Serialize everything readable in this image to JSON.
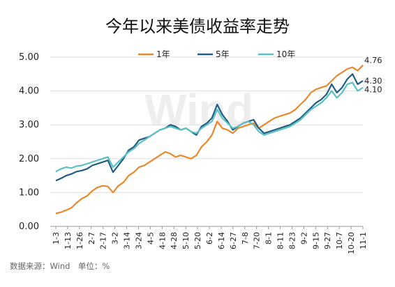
{
  "chart_data": {
    "type": "line",
    "title": "今年以来美债收益率走势",
    "ylim": [
      0,
      5
    ],
    "yticks": [
      "0.00",
      "1.00",
      "2.00",
      "3.00",
      "4.00",
      "5.00"
    ],
    "x_tick_labels": [
      "1-3",
      "1-13",
      "1-26",
      "2-7",
      "2-17",
      "3-2",
      "3-14",
      "3-24",
      "4-5",
      "4-18",
      "4-28",
      "5-10",
      "5-20",
      "6-2",
      "6-14",
      "6-27",
      "7-8",
      "7-20",
      "8-1",
      "8-11",
      "8-23",
      "9-2",
      "9-15",
      "9-27",
      "10-7",
      "10-20",
      "11-1"
    ],
    "grid": true,
    "legend_position": "top",
    "series": [
      {
        "name": "1年",
        "color": "#e8892b",
        "end_label": "4.76",
        "values": [
          0.38,
          0.42,
          0.48,
          0.55,
          0.7,
          0.82,
          0.9,
          1.05,
          1.15,
          1.2,
          1.18,
          1.0,
          1.2,
          1.3,
          1.5,
          1.6,
          1.75,
          1.8,
          1.9,
          2.0,
          2.1,
          2.2,
          2.15,
          2.05,
          2.1,
          2.05,
          2.0,
          2.1,
          2.35,
          2.5,
          2.7,
          3.1,
          2.9,
          2.85,
          2.75,
          2.9,
          2.95,
          3.0,
          3.05,
          2.9,
          3.0,
          3.1,
          3.2,
          3.25,
          3.3,
          3.35,
          3.45,
          3.6,
          3.75,
          3.95,
          4.05,
          4.1,
          4.15,
          4.3,
          4.45,
          4.55,
          4.65,
          4.7,
          4.6,
          4.76
        ]
      },
      {
        "name": "5年",
        "color": "#1f5d85",
        "end_label": "4.30",
        "values": [
          1.35,
          1.42,
          1.5,
          1.55,
          1.62,
          1.65,
          1.7,
          1.8,
          1.85,
          1.9,
          1.95,
          1.6,
          1.8,
          2.0,
          2.25,
          2.35,
          2.55,
          2.6,
          2.65,
          2.75,
          2.85,
          2.9,
          3.0,
          2.95,
          2.85,
          2.9,
          2.8,
          2.7,
          2.95,
          3.05,
          3.2,
          3.6,
          3.3,
          3.1,
          2.85,
          2.95,
          3.05,
          3.1,
          3.15,
          2.9,
          2.75,
          2.8,
          2.85,
          2.9,
          2.95,
          3.0,
          3.1,
          3.2,
          3.35,
          3.5,
          3.65,
          3.75,
          3.9,
          4.2,
          3.95,
          4.1,
          4.35,
          4.5,
          4.2,
          4.3
        ]
      },
      {
        "name": "10年",
        "color": "#5cc0c4",
        "end_label": "4.10",
        "values": [
          1.62,
          1.7,
          1.75,
          1.72,
          1.78,
          1.8,
          1.85,
          1.9,
          1.95,
          2.0,
          2.05,
          1.75,
          1.9,
          2.05,
          2.2,
          2.3,
          2.45,
          2.55,
          2.65,
          2.75,
          2.85,
          2.9,
          2.95,
          2.9,
          2.85,
          2.9,
          2.8,
          2.75,
          2.9,
          3.0,
          3.1,
          3.45,
          3.2,
          3.05,
          2.9,
          2.95,
          3.05,
          3.1,
          3.0,
          2.8,
          2.7,
          2.75,
          2.8,
          2.85,
          2.9,
          2.95,
          3.05,
          3.15,
          3.3,
          3.45,
          3.55,
          3.65,
          3.8,
          4.0,
          3.8,
          3.95,
          4.2,
          4.25,
          4.0,
          4.1
        ]
      }
    ]
  },
  "watermark": "Wind",
  "source": "数据来源：Wind　单位：%"
}
